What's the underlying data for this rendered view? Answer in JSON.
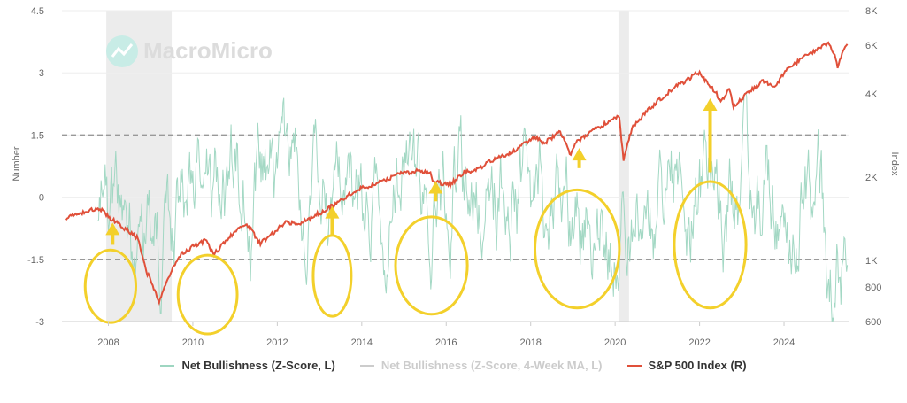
{
  "watermark": "MacroMicro",
  "chart_data": {
    "type": "line",
    "title": "",
    "ylabel_left": "Number",
    "ylabel_right": "Index",
    "x_range": [
      2006.9,
      2025.55
    ],
    "x_ticks": [
      "2008",
      "2010",
      "2012",
      "2014",
      "2016",
      "2018",
      "2020",
      "2022",
      "2024"
    ],
    "left_axis": {
      "min": -3,
      "max": 4.5,
      "ticks": [
        "-3",
        "-1.5",
        "0",
        "1.5",
        "3",
        "4.5"
      ]
    },
    "right_axis": {
      "scale": "log",
      "min": 600,
      "max": 8000,
      "ticks": [
        {
          "label": "600",
          "value": 600
        },
        {
          "label": "800",
          "value": 800
        },
        {
          "label": "1K",
          "value": 1000
        },
        {
          "label": "2K",
          "value": 2000
        },
        {
          "label": "4K",
          "value": 4000
        },
        {
          "label": "6K",
          "value": 6000
        },
        {
          "label": "8K",
          "value": 8000
        }
      ]
    },
    "reference_lines": [
      1.5,
      -1.5
    ],
    "recession_shading": [
      [
        2007.95,
        2009.5
      ],
      [
        2020.08,
        2020.33
      ]
    ],
    "series": [
      {
        "name": "Net Bullishness (Z-Score, L)",
        "color": "#9ed6c1",
        "axis": "left",
        "visible": true
      },
      {
        "name": "Net Bullishness (Z-Score, 4-Week MA, L)",
        "color": "#999999",
        "axis": "left",
        "visible": false
      },
      {
        "name": "S&P 500 Index (R)",
        "color": "#e0503a",
        "axis": "right",
        "visible": true,
        "points": [
          [
            2007.0,
            1420
          ],
          [
            2007.5,
            1510
          ],
          [
            2007.8,
            1540
          ],
          [
            2008.0,
            1440
          ],
          [
            2008.3,
            1330
          ],
          [
            2008.5,
            1270
          ],
          [
            2008.7,
            1200
          ],
          [
            2008.9,
            900
          ],
          [
            2009.0,
            860
          ],
          [
            2009.2,
            700
          ],
          [
            2009.3,
            780
          ],
          [
            2009.5,
            930
          ],
          [
            2009.7,
            1040
          ],
          [
            2010.0,
            1120
          ],
          [
            2010.3,
            1180
          ],
          [
            2010.5,
            1050
          ],
          [
            2010.8,
            1180
          ],
          [
            2011.0,
            1280
          ],
          [
            2011.3,
            1340
          ],
          [
            2011.6,
            1150
          ],
          [
            2011.9,
            1250
          ],
          [
            2012.2,
            1380
          ],
          [
            2012.5,
            1340
          ],
          [
            2012.8,
            1430
          ],
          [
            2013.0,
            1480
          ],
          [
            2013.5,
            1640
          ],
          [
            2013.9,
            1810
          ],
          [
            2014.2,
            1860
          ],
          [
            2014.6,
            1970
          ],
          [
            2014.9,
            2050
          ],
          [
            2015.3,
            2100
          ],
          [
            2015.6,
            2090
          ],
          [
            2015.7,
            1920
          ],
          [
            2016.1,
            1880
          ],
          [
            2016.4,
            2070
          ],
          [
            2016.8,
            2140
          ],
          [
            2017.0,
            2270
          ],
          [
            2017.5,
            2430
          ],
          [
            2017.9,
            2670
          ],
          [
            2018.1,
            2800
          ],
          [
            2018.3,
            2640
          ],
          [
            2018.7,
            2910
          ],
          [
            2018.95,
            2400
          ],
          [
            2019.1,
            2700
          ],
          [
            2019.5,
            2950
          ],
          [
            2019.9,
            3230
          ],
          [
            2020.1,
            3300
          ],
          [
            2020.2,
            2300
          ],
          [
            2020.4,
            3000
          ],
          [
            2020.7,
            3400
          ],
          [
            2021.0,
            3750
          ],
          [
            2021.4,
            4200
          ],
          [
            2021.9,
            4700
          ],
          [
            2022.0,
            4770
          ],
          [
            2022.4,
            4000
          ],
          [
            2022.5,
            3700
          ],
          [
            2022.7,
            4200
          ],
          [
            2022.8,
            3600
          ],
          [
            2023.0,
            3850
          ],
          [
            2023.5,
            4450
          ],
          [
            2023.8,
            4200
          ],
          [
            2024.0,
            4800
          ],
          [
            2024.5,
            5450
          ],
          [
            2024.9,
            5950
          ],
          [
            2025.05,
            6050
          ],
          [
            2025.2,
            5600
          ],
          [
            2025.27,
            5000
          ],
          [
            2025.4,
            5800
          ],
          [
            2025.5,
            6050
          ]
        ]
      }
    ],
    "annotations": {
      "ellipses": [
        {
          "center_year": 2008.05,
          "center_value": -2.15,
          "width_years": 1.2,
          "height": 1.75
        },
        {
          "center_year": 2010.35,
          "center_value": -2.35,
          "width_years": 1.4,
          "height": 1.9
        },
        {
          "center_year": 2013.3,
          "center_value": -1.9,
          "width_years": 0.9,
          "height": 1.95
        },
        {
          "center_year": 2015.65,
          "center_value": -1.65,
          "width_years": 1.7,
          "height": 2.35
        },
        {
          "center_year": 2019.1,
          "center_value": -1.25,
          "width_years": 2.0,
          "height": 2.85
        },
        {
          "center_year": 2022.25,
          "center_value": -1.15,
          "width_years": 1.7,
          "height": 3.05
        }
      ],
      "arrows": [
        {
          "year": 2008.1,
          "from": -1.15,
          "to": -0.7
        },
        {
          "year": 2013.3,
          "from": -0.95,
          "to": -0.3
        },
        {
          "year": 2015.75,
          "from": -0.1,
          "to": 0.3
        },
        {
          "year": 2019.15,
          "from": 0.7,
          "to": 1.1
        },
        {
          "year": 2022.25,
          "from": 0.6,
          "to": 2.3
        }
      ],
      "color": "#f3d02b"
    }
  },
  "legend": [
    {
      "label": "Net Bullishness (Z-Score, L)",
      "color": "#9ed6c1",
      "disabled": false
    },
    {
      "label": "Net Bullishness (Z-Score, 4-Week MA, L)",
      "color": "#cccccc",
      "disabled": true
    },
    {
      "label": "S&P 500 Index (R)",
      "color": "#e0503a",
      "disabled": false
    }
  ]
}
